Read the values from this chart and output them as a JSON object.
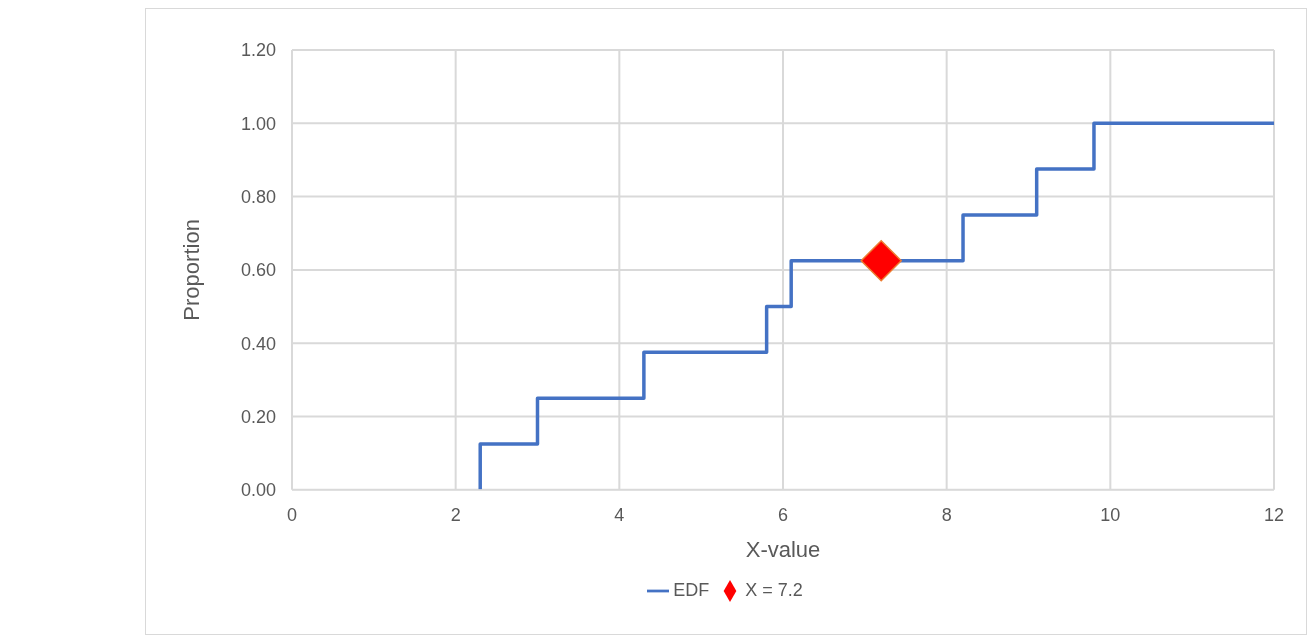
{
  "chart_data": {
    "type": "step",
    "xlabel": "X-value",
    "ylabel": "Proportion",
    "series": [
      {
        "name": "EDF",
        "color": "#4472c4",
        "x": [
          2.3,
          2.3,
          3,
          4.3,
          5.8,
          6.1,
          8.2,
          9.1,
          9.8,
          12
        ],
        "values": [
          0,
          0.125,
          0.25,
          0.375,
          0.5,
          0.625,
          0.75,
          0.875,
          1,
          1
        ]
      },
      {
        "name": "X = 7.2",
        "type": "scatter",
        "color": "#ff0000",
        "marker": "diamond",
        "x": [
          7.2
        ],
        "values": [
          0.625
        ]
      }
    ],
    "xlim": [
      0,
      12
    ],
    "xticks": [
      0,
      2,
      4,
      6,
      8,
      10,
      12
    ],
    "ylim": [
      0,
      1.2
    ],
    "yticks": [
      {
        "value": 0,
        "label": "0.00"
      },
      {
        "value": 0.2,
        "label": "0.20"
      },
      {
        "value": 0.4,
        "label": "0.40"
      },
      {
        "value": 0.6,
        "label": "0.60"
      },
      {
        "value": 0.8,
        "label": "0.80"
      },
      {
        "value": 1,
        "label": "1.00"
      },
      {
        "value": 1.2,
        "label": "1.20"
      }
    ],
    "grid": true,
    "legend": "bottom"
  }
}
